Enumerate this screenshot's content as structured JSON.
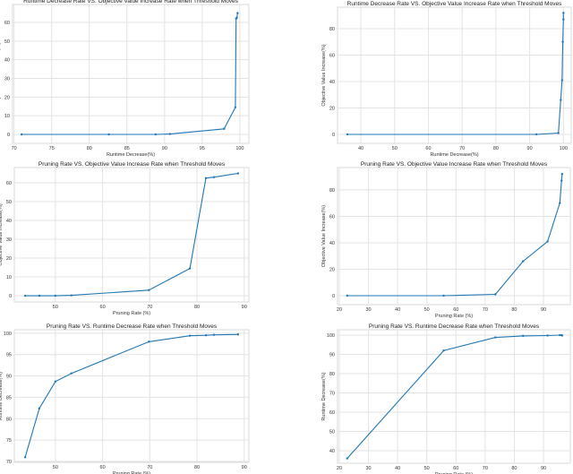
{
  "chart_data": [
    {
      "type": "line",
      "title": "Runtime Decrease Rate VS. Objective Value Increase Rate when Threshold Moves",
      "xlabel": "Runtime Decrease(%)",
      "ylabel": "Objective Value Increase(%)",
      "xlim": [
        69.8,
        101.2
      ],
      "ylim": [
        -4.8,
        69.6
      ],
      "xticks": [
        70,
        75,
        80,
        85,
        90,
        95,
        100
      ],
      "yticks": [
        0,
        10,
        20,
        30,
        40,
        50,
        60
      ],
      "grid": true,
      "x": [
        71,
        82.6,
        88.8,
        90.7,
        97.9,
        99.4,
        99.5,
        99.6,
        99.7
      ],
      "y": [
        0,
        0,
        0,
        0.2,
        3,
        14.5,
        62,
        62.5,
        65
      ]
    },
    {
      "type": "line",
      "title": "Runtime Decrease Rate VS. Objective Value Increase Rate when Threshold Moves",
      "xlabel": "Runtime Decrease(%)",
      "ylabel": "Objective Value Increase(%)",
      "xlim": [
        33.1,
        102.3
      ],
      "ylim": [
        -6.8,
        96.3
      ],
      "xticks": [
        40,
        50,
        60,
        70,
        80,
        90,
        100
      ],
      "yticks": [
        0,
        20,
        40,
        60,
        80
      ],
      "grid": true,
      "x": [
        36,
        92,
        98.5,
        99.2,
        99.6,
        99.8,
        100,
        100
      ],
      "y": [
        0,
        0,
        1,
        26,
        41,
        70,
        87,
        92
      ]
    },
    {
      "type": "line",
      "title": "Pruning Rate VS. Objective Value Increase Rate when Threshold Moves",
      "xlabel": "Pruning Rate (%)",
      "ylabel": "Objective Value Increase(%)",
      "xlim": [
        41.3,
        91
      ],
      "ylim": [
        -3.3,
        68.1
      ],
      "xticks": [
        50,
        60,
        70,
        80,
        90
      ],
      "yticks": [
        0,
        10,
        20,
        30,
        40,
        50,
        60
      ],
      "grid": true,
      "x": [
        43.6,
        46.6,
        50,
        53.4,
        69.8,
        78.5,
        81.9,
        83.6,
        88.7
      ],
      "y": [
        0,
        0,
        0,
        0.2,
        3,
        14.5,
        62.5,
        63,
        65
      ]
    },
    {
      "type": "line",
      "title": "Pruning Rate VS. Objective Value Increase Rate when Threshold Moves",
      "xlabel": "Pruning Rate (%)",
      "ylabel": "Objective Value Increase(%)",
      "xlim": [
        19.4,
        99.2
      ],
      "ylim": [
        -6.8,
        96.9
      ],
      "xticks": [
        20,
        30,
        40,
        50,
        60,
        70,
        80,
        90
      ],
      "yticks": [
        0,
        20,
        40,
        60,
        80
      ],
      "grid": true,
      "x": [
        22.7,
        55.8,
        73.5,
        83,
        91.4,
        95.6,
        96.2,
        96.4
      ],
      "y": [
        0,
        0,
        1,
        26,
        41,
        70,
        87,
        92
      ]
    },
    {
      "type": "line",
      "title": "Pruning Rate VS. Runtime Decrease Rate when Threshold Moves",
      "xlabel": "Pruning Rate (%)",
      "ylabel": "Runtime Decrease(%)",
      "xlim": [
        41.3,
        91
      ],
      "ylim": [
        69.8,
        100.8
      ],
      "xticks": [
        50,
        60,
        70,
        80,
        90
      ],
      "yticks": [
        70,
        75,
        80,
        85,
        90,
        95,
        100
      ],
      "grid": true,
      "x": [
        43.6,
        46.6,
        50,
        53.4,
        69.8,
        78.5,
        81.9,
        83.6,
        88.7
      ],
      "y": [
        71,
        82.4,
        88.7,
        90.6,
        98,
        99.4,
        99.5,
        99.6,
        99.7
      ]
    },
    {
      "type": "line",
      "title": "Pruning Rate VS. Runtime Decrease Rate when Threshold Moves",
      "xlabel": "Pruning Rate (%)",
      "ylabel": "Runtime Decrease(%)",
      "xlim": [
        19.4,
        99.2
      ],
      "ylim": [
        33.5,
        102.8
      ],
      "xticks": [
        20,
        30,
        40,
        50,
        60,
        70,
        80,
        90
      ],
      "yticks": [
        40,
        50,
        60,
        70,
        80,
        90,
        100
      ],
      "grid": true,
      "x": [
        22.7,
        55.8,
        73.5,
        83,
        91.4,
        95.6,
        96.2,
        96.4
      ],
      "y": [
        36,
        92,
        98.8,
        99.6,
        99.8,
        100,
        100,
        99.8
      ]
    }
  ],
  "colors": {
    "line": "#1f77b4",
    "grid": "#e3e3e3",
    "frame": "#d0d0d0"
  }
}
